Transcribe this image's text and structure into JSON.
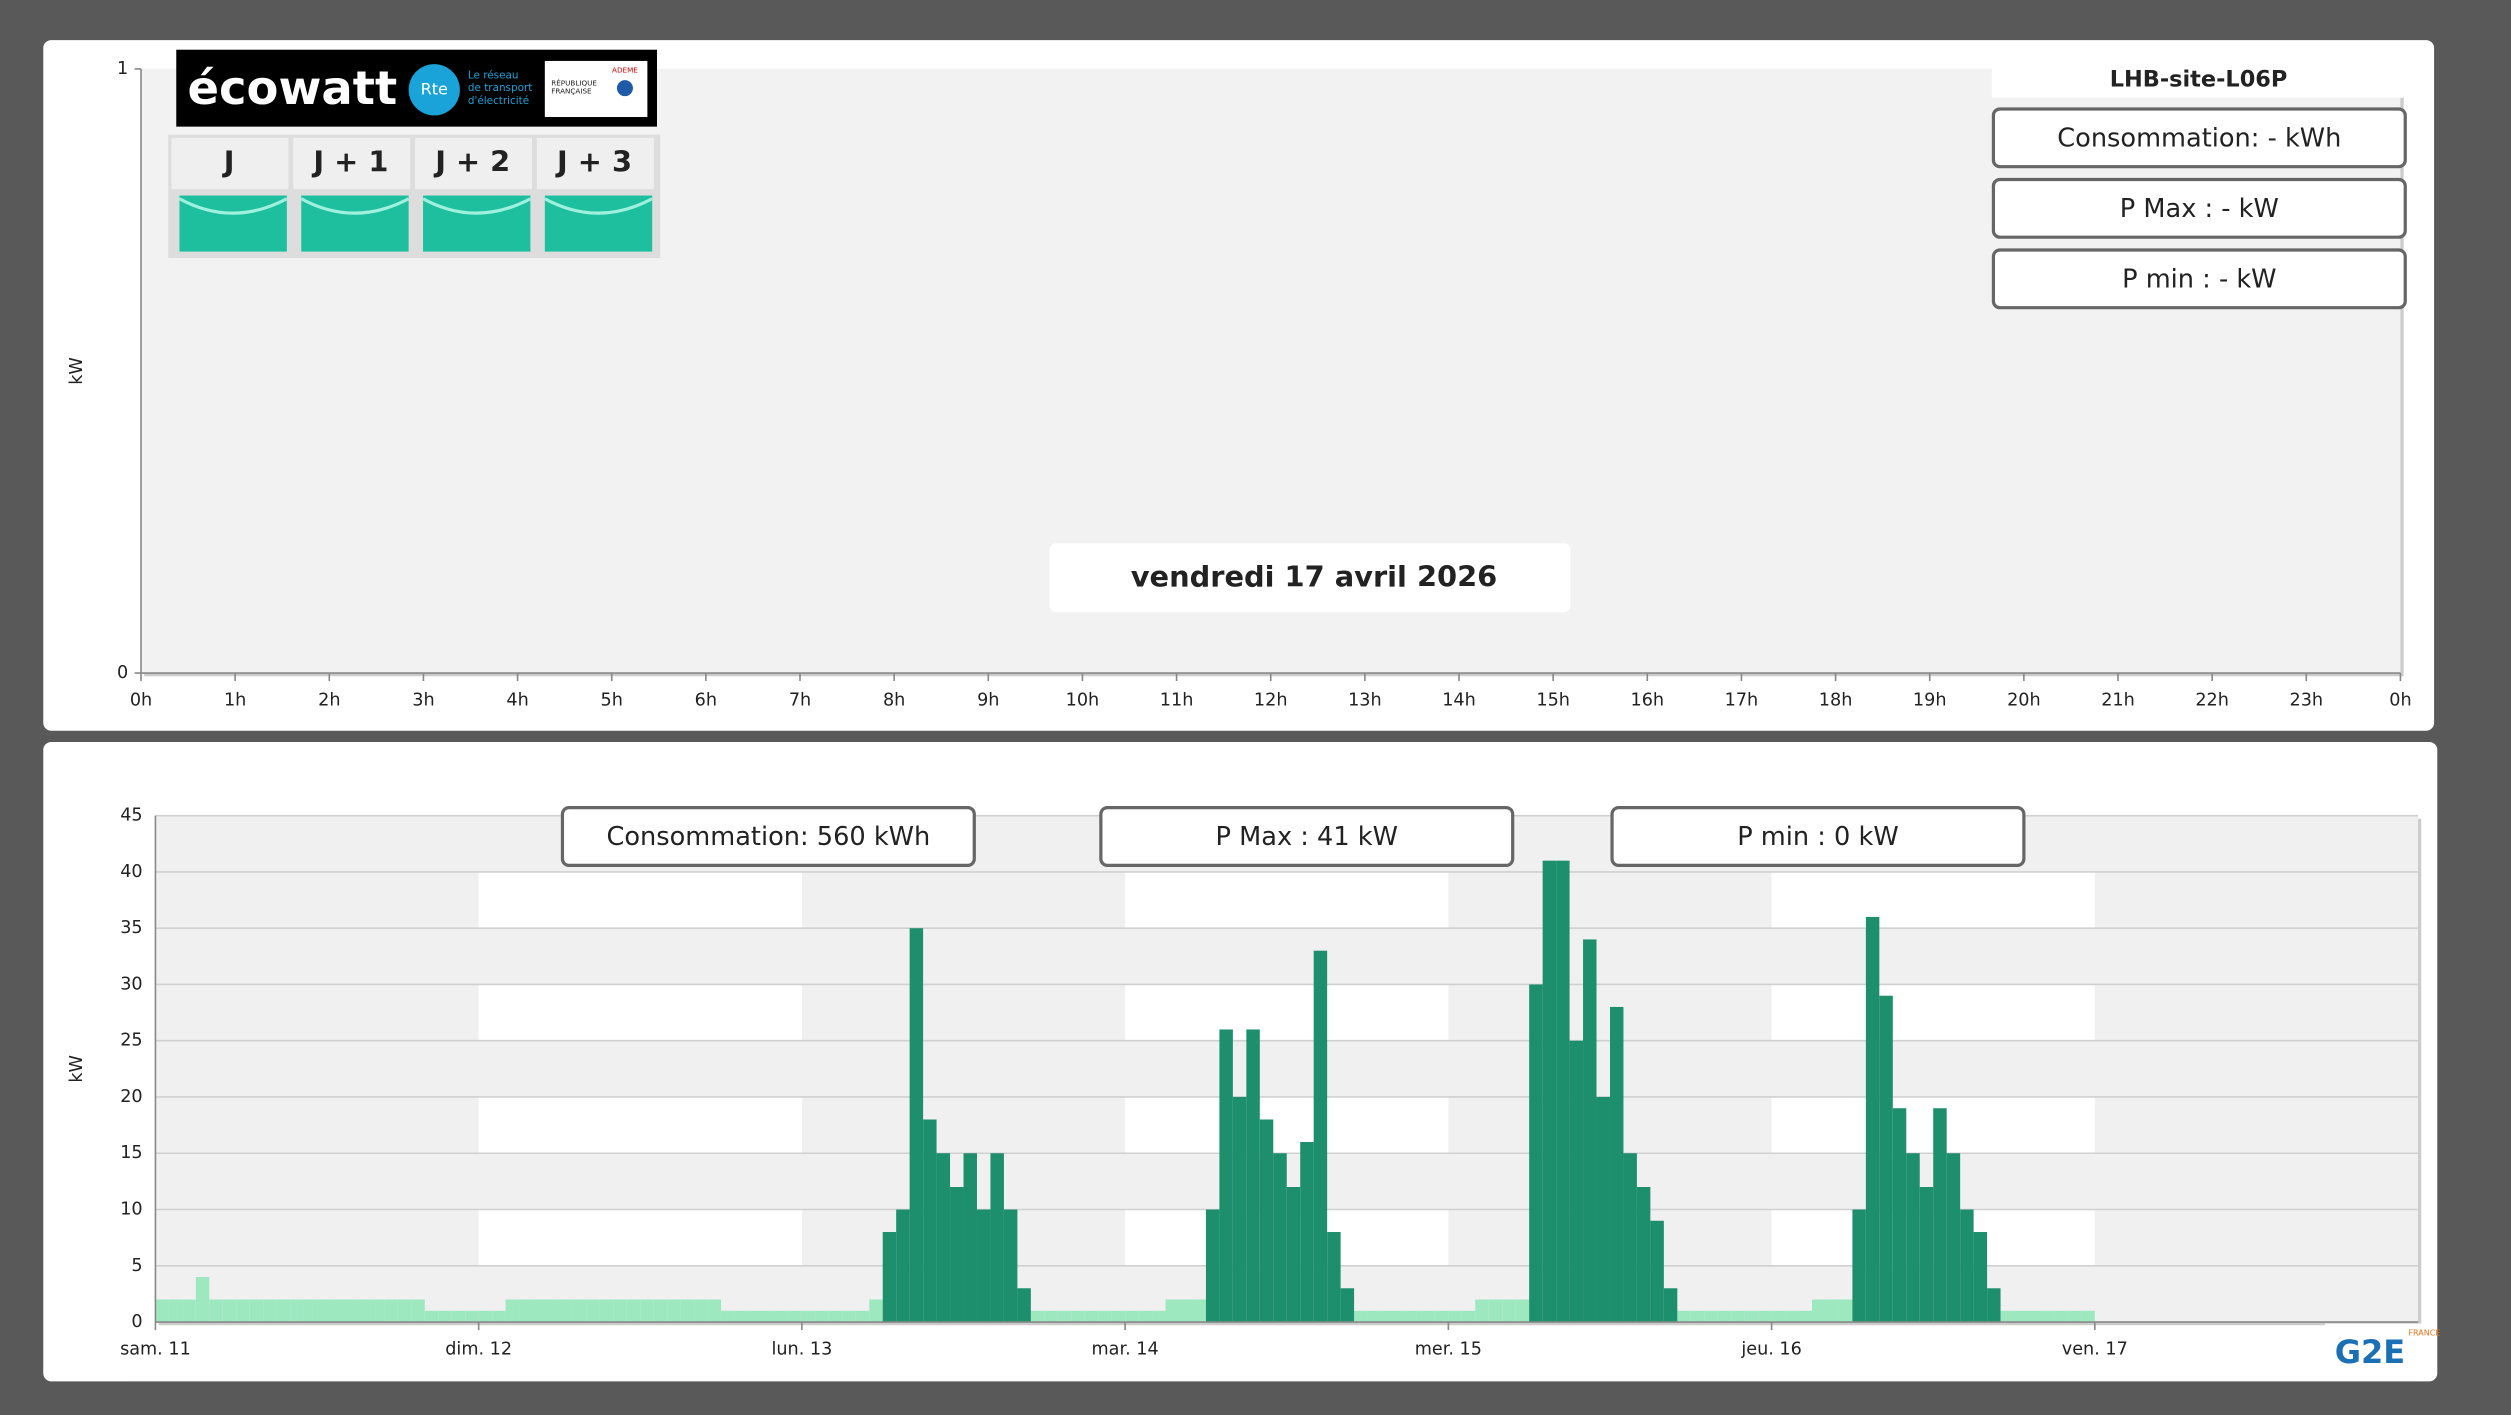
{
  "site": "LHB-site-L06P",
  "date_label": "vendredi 17 avril 2026",
  "day_info": [
    "Consommation: - kWh",
    "P Max :  - kW",
    "P min : - kW"
  ],
  "week_info": [
    "Consommation: 560 kWh",
    "P Max :  41 kW",
    "P min : 0 kW"
  ],
  "ecowatt": {
    "brand": "écowatt",
    "rte": "Rte",
    "rte_text": [
      "Le réseau",
      "de transport",
      "d'électricité"
    ],
    "republique": [
      "RÉPUBLIQUE",
      "FRANÇAISE"
    ],
    "ademe": "ADEME",
    "tabs": [
      "J",
      "J + 1",
      "J + 2",
      "J + 3"
    ]
  },
  "footer_logo": {
    "brand": "G2E",
    "country": "FRANCE"
  },
  "chart_data": [
    {
      "type": "bar",
      "ylabel": "kW",
      "ylim": [
        0,
        1
      ],
      "yticks": [
        0,
        1
      ],
      "xlim": [
        0,
        24
      ],
      "grid": false,
      "xticks": [
        {
          "value": 0,
          "label": "0h"
        },
        {
          "value": 1,
          "label": "1h"
        },
        {
          "value": 2,
          "label": "2h"
        },
        {
          "value": 3,
          "label": "3h"
        },
        {
          "value": 4,
          "label": "4h"
        },
        {
          "value": 5,
          "label": "5h"
        },
        {
          "value": 6,
          "label": "6h"
        },
        {
          "value": 7,
          "label": "7h"
        },
        {
          "value": 8,
          "label": "8h"
        },
        {
          "value": 9,
          "label": "9h"
        },
        {
          "value": 10,
          "label": "10h"
        },
        {
          "value": 11,
          "label": "11h"
        },
        {
          "value": 12,
          "label": "12h"
        },
        {
          "value": 13,
          "label": "13h"
        },
        {
          "value": 14,
          "label": "14h"
        },
        {
          "value": 15,
          "label": "15h"
        },
        {
          "value": 16,
          "label": "16h"
        },
        {
          "value": 17,
          "label": "17h"
        },
        {
          "value": 18,
          "label": "18h"
        },
        {
          "value": 19,
          "label": "19h"
        },
        {
          "value": 20,
          "label": "20h"
        },
        {
          "value": 21,
          "label": "21h"
        },
        {
          "value": 22,
          "label": "22h"
        },
        {
          "value": 23,
          "label": "23h"
        },
        {
          "value": 24,
          "label": "0h"
        }
      ]
    },
    {
      "type": "bar",
      "ylabel": "kW",
      "ylim": [
        0,
        45
      ],
      "yticks": [
        0,
        5,
        10,
        15,
        20,
        25,
        30,
        35,
        40,
        45
      ],
      "xlim": [
        0,
        168
      ],
      "grid": true,
      "xticks": [
        {
          "value": 0,
          "label": "sam. 11"
        },
        {
          "value": 24,
          "label": "dim. 12"
        },
        {
          "value": 48,
          "label": "lun. 13"
        },
        {
          "value": 72,
          "label": "mar. 14"
        },
        {
          "value": 96,
          "label": "mer. 15"
        },
        {
          "value": 120,
          "label": "jeu. 16"
        },
        {
          "value": 144,
          "label": "ven. 17"
        }
      ],
      "x": [
        0,
        1,
        2,
        3,
        4,
        5,
        6,
        7,
        8,
        9,
        10,
        11,
        12,
        13,
        14,
        15,
        16,
        17,
        18,
        19,
        20,
        21,
        22,
        23,
        24,
        25,
        26,
        27,
        28,
        29,
        30,
        31,
        32,
        33,
        34,
        35,
        36,
        37,
        38,
        39,
        40,
        41,
        42,
        43,
        44,
        45,
        46,
        47,
        48,
        49,
        50,
        51,
        52,
        53,
        54,
        55,
        56,
        57,
        58,
        59,
        60,
        61,
        62,
        63,
        64,
        65,
        66,
        67,
        68,
        69,
        70,
        71,
        72,
        73,
        74,
        75,
        76,
        77,
        78,
        79,
        80,
        81,
        82,
        83,
        84,
        85,
        86,
        87,
        88,
        89,
        90,
        91,
        92,
        93,
        94,
        95,
        96,
        97,
        98,
        99,
        100,
        101,
        102,
        103,
        104,
        105,
        106,
        107,
        108,
        109,
        110,
        111,
        112,
        113,
        114,
        115,
        116,
        117,
        118,
        119,
        120,
        121,
        122,
        123,
        124,
        125,
        126,
        127,
        128,
        129,
        130,
        131,
        132,
        133,
        134,
        135,
        136,
        137,
        138,
        139,
        140,
        141,
        142,
        143
      ],
      "series": [
        {
          "color": "#9ee8c0",
          "values": [
            2,
            2,
            2,
            4,
            2,
            2,
            2,
            2,
            2,
            2,
            2,
            2,
            2,
            2,
            2,
            2,
            2,
            2,
            2,
            2,
            1,
            1,
            1,
            1,
            1,
            1,
            2,
            2,
            2,
            2,
            2,
            2,
            2,
            2,
            2,
            2,
            2,
            2,
            2,
            2,
            2,
            2,
            1,
            1,
            1,
            1,
            1,
            1,
            1,
            1,
            1,
            1,
            1,
            2,
            null,
            null,
            null,
            null,
            null,
            null,
            null,
            null,
            null,
            null,
            null,
            1,
            1,
            1,
            1,
            1,
            1,
            1,
            1,
            1,
            1,
            2,
            2,
            2,
            null,
            null,
            null,
            null,
            null,
            null,
            null,
            null,
            null,
            null,
            null,
            1,
            1,
            1,
            1,
            1,
            1,
            1,
            1,
            1,
            2,
            2,
            2,
            2,
            null,
            null,
            null,
            null,
            null,
            null,
            null,
            null,
            null,
            null,
            null,
            1,
            1,
            1,
            1,
            1,
            1,
            1,
            1,
            1,
            1,
            2,
            2,
            2,
            null,
            null,
            null,
            null,
            null,
            null,
            null,
            null,
            null,
            null,
            null,
            1,
            1,
            1,
            1,
            1,
            1,
            1
          ]
        },
        {
          "color": "#1e8f6c",
          "values": [
            null,
            null,
            null,
            null,
            null,
            null,
            null,
            null,
            null,
            null,
            null,
            null,
            null,
            null,
            null,
            null,
            null,
            null,
            null,
            null,
            null,
            null,
            null,
            null,
            null,
            null,
            null,
            null,
            null,
            null,
            null,
            null,
            null,
            null,
            null,
            null,
            null,
            null,
            null,
            null,
            null,
            null,
            null,
            null,
            null,
            null,
            null,
            null,
            null,
            null,
            null,
            null,
            null,
            null,
            8,
            10,
            35,
            18,
            15,
            12,
            15,
            10,
            15,
            10,
            3,
            null,
            null,
            null,
            null,
            null,
            null,
            null,
            null,
            null,
            null,
            null,
            null,
            null,
            10,
            26,
            20,
            26,
            18,
            15,
            12,
            16,
            33,
            8,
            3,
            null,
            null,
            null,
            null,
            null,
            null,
            null,
            null,
            null,
            null,
            null,
            null,
            null,
            30,
            41,
            41,
            25,
            34,
            20,
            28,
            15,
            12,
            9,
            3,
            null,
            null,
            null,
            null,
            null,
            null,
            null,
            null,
            null,
            null,
            null,
            null,
            null,
            10,
            36,
            29,
            19,
            15,
            12,
            19,
            15,
            10,
            8,
            3,
            null,
            null,
            null,
            null,
            null,
            null,
            null
          ]
        }
      ]
    }
  ]
}
